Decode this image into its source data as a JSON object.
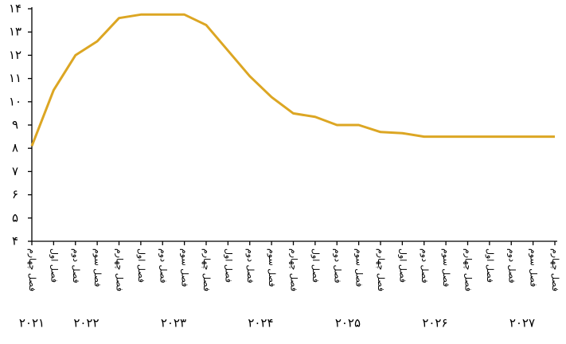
{
  "chart_data": {
    "type": "line",
    "color": "#dca623",
    "ylim": [
      4,
      14
    ],
    "yticks": [
      {
        "value": 4,
        "label": "۴"
      },
      {
        "value": 5,
        "label": "۵"
      },
      {
        "value": 6,
        "label": "۶"
      },
      {
        "value": 7,
        "label": "۷"
      },
      {
        "value": 8,
        "label": "۸"
      },
      {
        "value": 9,
        "label": "۹"
      },
      {
        "value": 10,
        "label": "۱۰"
      },
      {
        "value": 11,
        "label": "۱۱"
      },
      {
        "value": 12,
        "label": "۱۲"
      },
      {
        "value": 13,
        "label": "۱۳"
      },
      {
        "value": 14,
        "label": "۱۴"
      }
    ],
    "groups": [
      {
        "label": "۲۰۲۱",
        "categories": [
          "فصل چهارم"
        ],
        "values": [
          8.1
        ]
      },
      {
        "label": "۲۰۲۲",
        "categories": [
          "فصل اول",
          "فصل دوم",
          "فصل سوم",
          "فصل چهارم"
        ],
        "values": [
          10.5,
          12.0,
          12.6,
          13.6
        ]
      },
      {
        "label": "۲۰۲۳",
        "categories": [
          "فصل اول",
          "فصل دوم",
          "فصل سوم",
          "فصل چهارم"
        ],
        "values": [
          13.75,
          13.75,
          13.75,
          13.3
        ]
      },
      {
        "label": "۲۰۲۴",
        "categories": [
          "فصل اول",
          "فصل دوم",
          "فصل سوم",
          "فصل چهارم"
        ],
        "values": [
          12.2,
          11.1,
          10.2,
          9.5
        ]
      },
      {
        "label": "۲۰۲۵",
        "categories": [
          "فصل اول",
          "فصل دوم",
          "فصل سوم",
          "فصل چهارم"
        ],
        "values": [
          9.35,
          9.0,
          9.0,
          8.7
        ]
      },
      {
        "label": "۲۰۲۶",
        "categories": [
          "فصل اول",
          "فصل دوم",
          "فصل سوم",
          "فصل چهارم"
        ],
        "values": [
          8.65,
          8.5,
          8.5,
          8.5
        ]
      },
      {
        "label": "۲۰۲۷",
        "categories": [
          "فصل اول",
          "فصل دوم",
          "فصل سوم",
          "فصل چهارم"
        ],
        "values": [
          8.5,
          8.5,
          8.5,
          8.5
        ]
      }
    ]
  }
}
